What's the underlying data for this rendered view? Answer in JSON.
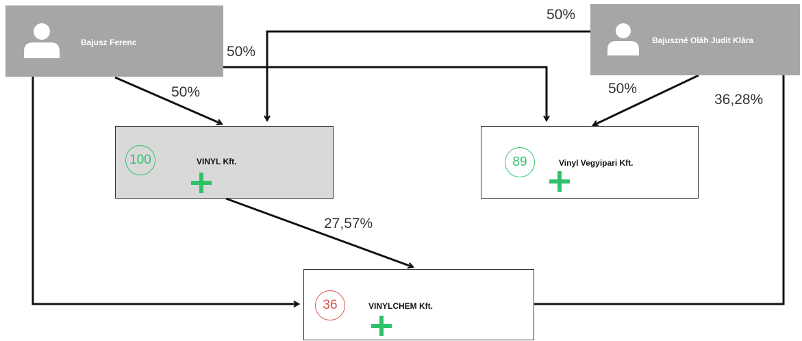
{
  "persons": [
    {
      "name": "Bajusz Ferenc",
      "icon": "user-icon"
    },
    {
      "name": "Bajuszné Oláh Judit Klára",
      "icon": "user-icon"
    }
  ],
  "companies": [
    {
      "name": "VINYL Kft.",
      "score": "100",
      "score_color": "#2fc26b",
      "icon": "plus-icon"
    },
    {
      "name": "Vinyl Vegyipari Kft.",
      "score": "89",
      "score_color": "#2fc26b",
      "icon": "plus-icon"
    },
    {
      "name": "VINYLCHEM Kft.",
      "score": "36",
      "score_color": "#d9534f",
      "icon": "plus-icon"
    }
  ],
  "ownership": [
    {
      "from": "Bajusz Ferenc",
      "to": "VINYL Kft.",
      "label": "50%"
    },
    {
      "from": "Bajusz Ferenc",
      "to": "Vinyl Vegyipari Kft.",
      "label": "50%"
    },
    {
      "from": "Bajusz Ferenc",
      "to": "VINYLCHEM Kft.",
      "label": ""
    },
    {
      "from": "Bajuszné Oláh Judit Klára",
      "to": "VINYL Kft.",
      "label": "50%"
    },
    {
      "from": "Bajuszné Oláh Judit Klára",
      "to": "Vinyl Vegyipari Kft.",
      "label": "50%"
    },
    {
      "from": "Bajuszné Oláh Judit Klára",
      "to": "VINYLCHEM Kft.",
      "label": "36,28%"
    },
    {
      "from": "VINYL Kft.",
      "to": "VINYLCHEM Kft.",
      "label": "27,57%"
    }
  ],
  "colors": {
    "person_fill": "#a6a6a6",
    "highlight_fill": "#d9d9d9",
    "plus": "#2fc26b",
    "arrow": "#111111"
  }
}
